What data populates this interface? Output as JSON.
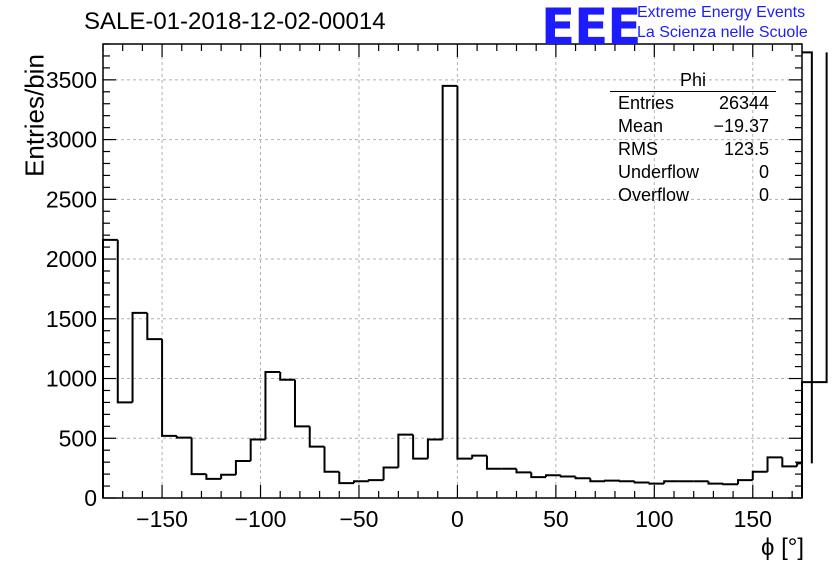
{
  "header": {
    "title": "SALE-01-2018-12-02-00014",
    "logo_text": "EEE",
    "logo_line1": "Extreme Energy Events",
    "logo_line2": "La Scienza nelle Scuole"
  },
  "stats_box": {
    "name": "Phi",
    "rows": [
      {
        "label": "Entries",
        "value": "26344"
      },
      {
        "label": "Mean",
        "value": "−19.37"
      },
      {
        "label": "RMS",
        "value": "123.5"
      },
      {
        "label": "Underflow",
        "value": "0"
      },
      {
        "label": "Overflow",
        "value": "0"
      }
    ]
  },
  "chart_data": {
    "type": "bar",
    "style": "step-histogram",
    "title": "SALE-01-2018-12-02-00014",
    "xlabel": "ϕ [°]",
    "ylabel": "Entries/bin",
    "xlim": [
      -180,
      175
    ],
    "ylim": [
      0,
      3800
    ],
    "bin_width": 7.5,
    "bin_edges_start": -180,
    "xticks": [
      -150,
      -100,
      -50,
      0,
      50,
      100,
      150
    ],
    "xtick_labels": [
      "−150",
      "−100",
      "−50",
      "0",
      "50",
      "100",
      "150"
    ],
    "yticks": [
      0,
      500,
      1000,
      1500,
      2000,
      2500,
      3000,
      3500
    ],
    "ytick_labels": [
      "0",
      "500",
      "1000",
      "1500",
      "2000",
      "2500",
      "3000",
      "3500"
    ],
    "grid": true,
    "legend": "stats box top-right",
    "line_color": "#000000",
    "values": [
      2160,
      800,
      1550,
      1330,
      520,
      505,
      200,
      160,
      195,
      310,
      490,
      1055,
      990,
      600,
      430,
      220,
      125,
      140,
      150,
      255,
      530,
      330,
      490,
      3450,
      330,
      355,
      245,
      245,
      215,
      175,
      190,
      180,
      165,
      140,
      145,
      140,
      130,
      120,
      140,
      140,
      140,
      120,
      115,
      150,
      220,
      340,
      265,
      290,
      3730,
      970
    ]
  }
}
